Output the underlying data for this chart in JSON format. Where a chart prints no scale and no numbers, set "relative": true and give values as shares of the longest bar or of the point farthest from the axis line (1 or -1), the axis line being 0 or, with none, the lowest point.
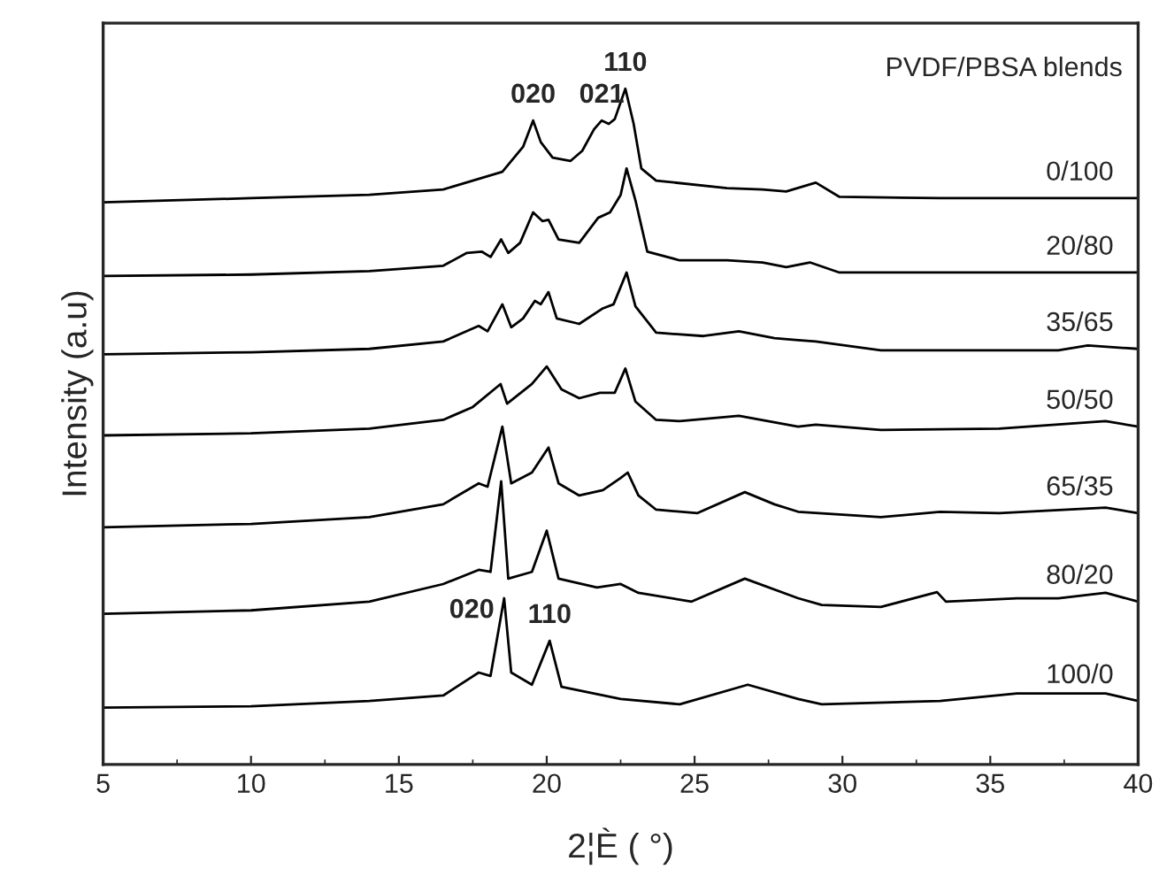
{
  "chart_data": {
    "type": "line",
    "relative": true,
    "xlabel": "2¦È ( °)",
    "ylabel": "Intensity (a.u)",
    "xlim": [
      5,
      40
    ],
    "xticks": [
      5,
      10,
      15,
      20,
      25,
      30,
      35,
      40
    ],
    "grid": false,
    "legend": false,
    "marker": "none",
    "line_style": "solid",
    "series": [
      {
        "name": "0/100",
        "color": "#000000",
        "x": [
          5,
          10,
          14,
          16.5,
          18.5,
          19.2,
          19.54,
          19.8,
          20.2,
          20.8,
          21.2,
          21.6,
          21.86,
          22.1,
          22.3,
          22.66,
          22.94,
          23.2,
          23.7,
          26.1,
          27.3,
          28.1,
          29.1,
          29.9,
          33.3,
          40
        ],
        "values": [
          0.832,
          0.838,
          0.843,
          0.851,
          0.877,
          0.914,
          0.953,
          0.921,
          0.898,
          0.893,
          0.908,
          0.94,
          0.953,
          0.948,
          0.955,
          1.0,
          0.948,
          0.882,
          0.864,
          0.853,
          0.851,
          0.848,
          0.861,
          0.84,
          0.838,
          0.838
        ]
      },
      {
        "name": "20/80",
        "color": "#000000",
        "x": [
          5,
          10,
          14,
          16.5,
          17.3,
          17.8,
          18.1,
          18.46,
          18.7,
          19.1,
          19.54,
          19.86,
          20.06,
          20.4,
          21.1,
          21.74,
          22.14,
          22.5,
          22.7,
          23.0,
          23.4,
          24.5,
          26.1,
          27.3,
          28.1,
          28.9,
          29.9,
          40
        ],
        "values": [
          0.723,
          0.725,
          0.73,
          0.738,
          0.757,
          0.759,
          0.751,
          0.777,
          0.757,
          0.772,
          0.817,
          0.804,
          0.806,
          0.777,
          0.772,
          0.809,
          0.817,
          0.843,
          0.882,
          0.835,
          0.759,
          0.746,
          0.746,
          0.743,
          0.736,
          0.743,
          0.728,
          0.728
        ]
      },
      {
        "name": "35/65",
        "color": "#000000",
        "x": [
          5,
          10,
          14,
          16.5,
          17.7,
          18.0,
          18.5,
          18.8,
          19.2,
          19.6,
          19.8,
          20.06,
          20.34,
          21.1,
          21.9,
          22.26,
          22.7,
          23.0,
          23.7,
          25.3,
          26.5,
          27.7,
          28.5,
          29.1,
          31.3,
          37.3,
          38.3,
          40
        ],
        "values": [
          0.607,
          0.61,
          0.615,
          0.626,
          0.649,
          0.641,
          0.681,
          0.647,
          0.66,
          0.686,
          0.681,
          0.699,
          0.66,
          0.652,
          0.675,
          0.681,
          0.728,
          0.678,
          0.639,
          0.634,
          0.641,
          0.631,
          0.628,
          0.626,
          0.613,
          0.613,
          0.62,
          0.615
        ]
      },
      {
        "name": "50/50",
        "color": "#000000",
        "x": [
          5,
          10,
          14,
          16.5,
          17.5,
          18.44,
          18.66,
          19.5,
          20.0,
          20.5,
          21.1,
          21.8,
          22.3,
          22.66,
          23.0,
          23.7,
          24.5,
          26.5,
          28.5,
          29.1,
          31.3,
          35.3,
          38.9,
          40
        ],
        "values": [
          0.487,
          0.49,
          0.497,
          0.51,
          0.529,
          0.563,
          0.534,
          0.563,
          0.589,
          0.555,
          0.542,
          0.55,
          0.55,
          0.586,
          0.537,
          0.51,
          0.508,
          0.516,
          0.5,
          0.503,
          0.495,
          0.497,
          0.508,
          0.5
        ]
      },
      {
        "name": "65/35",
        "color": "#000000",
        "x": [
          5,
          10,
          14,
          16.5,
          17.7,
          18.0,
          18.5,
          18.8,
          19.5,
          20.06,
          20.4,
          21.1,
          21.9,
          22.5,
          22.74,
          23.1,
          23.7,
          25.1,
          26.7,
          27.7,
          28.5,
          31.3,
          33.3,
          35.3,
          38.9,
          40
        ],
        "values": [
          0.351,
          0.356,
          0.366,
          0.385,
          0.416,
          0.411,
          0.5,
          0.416,
          0.432,
          0.469,
          0.416,
          0.398,
          0.406,
          0.424,
          0.432,
          0.398,
          0.377,
          0.372,
          0.403,
          0.385,
          0.374,
          0.366,
          0.374,
          0.372,
          0.38,
          0.372
        ]
      },
      {
        "name": "80/20",
        "color": "#000000",
        "x": [
          5,
          10,
          14,
          16.5,
          17.7,
          18.1,
          18.46,
          18.7,
          19.5,
          20.0,
          20.4,
          21.7,
          22.5,
          23.1,
          24.9,
          26.7,
          28.5,
          29.3,
          31.3,
          33.2,
          33.5,
          35.9,
          37.3,
          38.9,
          40
        ],
        "values": [
          0.223,
          0.228,
          0.241,
          0.267,
          0.288,
          0.285,
          0.419,
          0.275,
          0.285,
          0.346,
          0.275,
          0.262,
          0.267,
          0.254,
          0.241,
          0.275,
          0.246,
          0.236,
          0.233,
          0.255,
          0.241,
          0.246,
          0.246,
          0.254,
          0.241
        ]
      },
      {
        "name": "100/0",
        "color": "#000000",
        "x": [
          5,
          10,
          14,
          16.5,
          17.7,
          18.1,
          18.56,
          18.8,
          19.5,
          20.1,
          20.5,
          22.5,
          24.5,
          26.8,
          28.5,
          29.3,
          33.3,
          35.9,
          38.9,
          40
        ],
        "values": [
          0.084,
          0.086,
          0.094,
          0.102,
          0.136,
          0.131,
          0.246,
          0.136,
          0.118,
          0.183,
          0.115,
          0.097,
          0.089,
          0.118,
          0.097,
          0.089,
          0.094,
          0.105,
          0.105,
          0.094
        ]
      }
    ],
    "annotations": [
      "PVDF/PBSA blends",
      {
        "text": "020",
        "x": 19.54,
        "y": 0.953
      },
      {
        "text": "021",
        "x": 21.86,
        "y": 0.953
      },
      {
        "text": "110",
        "x": 22.66,
        "y": 1.0
      },
      {
        "text": "020",
        "x": 18.56,
        "y": 0.246
      },
      {
        "text": "110",
        "x": 20.1,
        "y": 0.183
      }
    ]
  }
}
